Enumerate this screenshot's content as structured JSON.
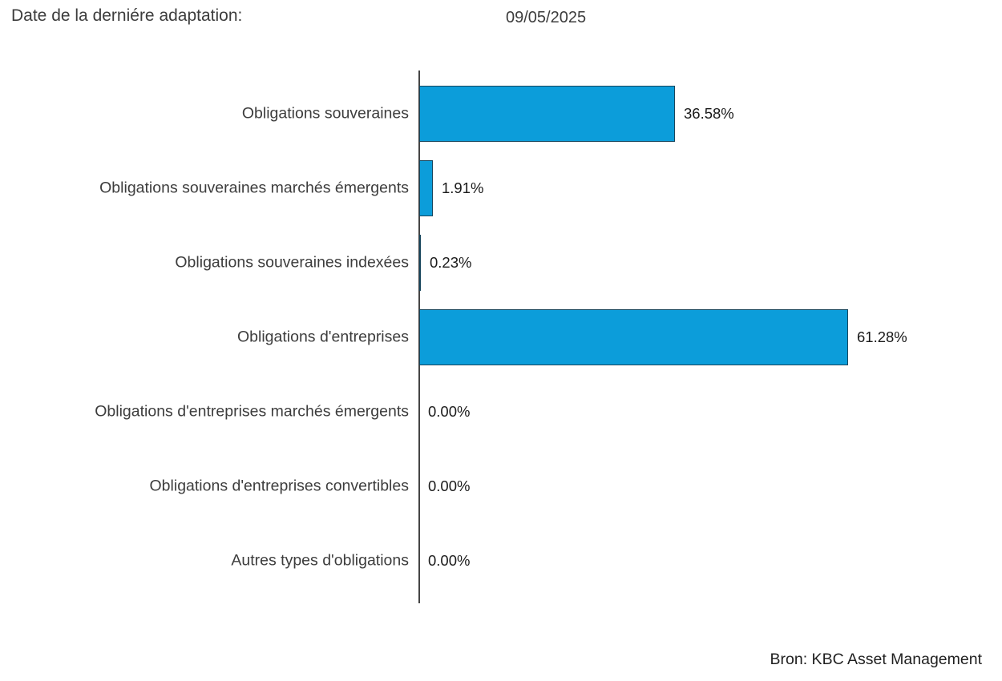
{
  "header": {
    "label": "Date de la derniére adaptation:",
    "date": "09/05/2025"
  },
  "footer": {
    "source": "Bron: KBC Asset Management"
  },
  "colors": {
    "bar_fill": "#0C9DDA",
    "bar_border": "#17455C",
    "axis_line": "#454545",
    "label_text": "#3D3D3D",
    "value_text": "#1A1A1A"
  },
  "chart_data": {
    "type": "bar",
    "orientation": "horizontal",
    "title": "",
    "xlabel": "",
    "ylabel": "",
    "xlim": [
      0,
      70
    ],
    "grid": false,
    "legend": false,
    "categories": [
      "Obligations souveraines",
      "Obligations souveraines marchés émergents",
      "Obligations souveraines indexées",
      "Obligations d'entreprises",
      "Obligations d'entreprises marchés émergents",
      "Obligations d'entreprises convertibles",
      "Autres types d'obligations"
    ],
    "values": [
      36.58,
      1.91,
      0.23,
      61.28,
      0.0,
      0.0,
      0.0
    ],
    "value_labels": [
      "36.58%",
      "1.91%",
      "0.23%",
      "61.28%",
      "0.00%",
      "0.00%",
      "0.00%"
    ]
  }
}
